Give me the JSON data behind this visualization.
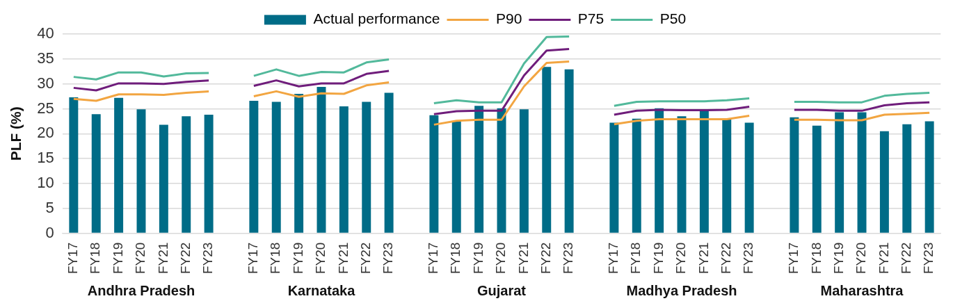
{
  "chart_data": {
    "type": "bar",
    "ylabel": "PLF (%)",
    "categories": [
      "FY17",
      "FY18",
      "FY19",
      "FY20",
      "FY21",
      "FY22",
      "FY23",
      null,
      "FY17",
      "FY18",
      "FY19",
      "FY20",
      "FY21",
      "FY22",
      "FY23",
      null,
      "FY17",
      "FY18",
      "FY19",
      "FY20",
      "FY21",
      "FY22",
      "FY23",
      null,
      "FY17",
      "FY18",
      "FY19",
      "FY20",
      "FY21",
      "FY22",
      "FY23",
      null,
      "FY17",
      "FY18",
      "FY19",
      "FY20",
      "FY21",
      "FY22",
      "FY23"
    ],
    "series": [
      {
        "name": "Actual performance",
        "color": "#006c87",
        "values": [
          27.3,
          23.9,
          27.2,
          24.9,
          21.8,
          23.5,
          23.8,
          null,
          26.6,
          26.4,
          28.0,
          29.4,
          25.5,
          26.4,
          28.2,
          null,
          23.7,
          22.5,
          25.6,
          25.1,
          24.9,
          33.4,
          32.9,
          null,
          22.2,
          23.0,
          25.1,
          23.5,
          24.6,
          23.1,
          22.2,
          null,
          23.3,
          21.6,
          24.3,
          24.3,
          20.5,
          21.9,
          22.5
        ]
      },
      {
        "name": "P90",
        "type": "line",
        "color": "#f2a541",
        "values": [
          27.0,
          26.6,
          27.9,
          27.9,
          27.8,
          28.2,
          28.5,
          null,
          27.5,
          28.5,
          27.4,
          28.1,
          28.0,
          29.7,
          30.3,
          null,
          21.8,
          22.6,
          22.8,
          22.8,
          29.5,
          34.2,
          34.5,
          null,
          21.9,
          22.6,
          22.9,
          22.9,
          22.9,
          22.9,
          23.6,
          null,
          22.8,
          22.8,
          22.7,
          22.7,
          23.8,
          24.0,
          24.2
        ]
      },
      {
        "name": "P75",
        "type": "line",
        "color": "#6f1d7b",
        "values": [
          29.2,
          28.7,
          30.1,
          30.1,
          30.0,
          30.4,
          30.7,
          null,
          29.6,
          30.7,
          29.5,
          30.1,
          30.1,
          32.0,
          32.6,
          null,
          23.9,
          24.5,
          24.6,
          24.6,
          31.7,
          36.7,
          37.0,
          null,
          23.8,
          24.6,
          24.8,
          24.7,
          24.7,
          24.8,
          25.4,
          null,
          24.8,
          24.8,
          24.6,
          24.6,
          25.7,
          26.1,
          26.3
        ]
      },
      {
        "name": "P50",
        "type": "line",
        "color": "#52b99b",
        "values": [
          31.4,
          30.9,
          32.3,
          32.3,
          31.5,
          32.1,
          32.2,
          null,
          31.6,
          32.9,
          31.6,
          32.4,
          32.3,
          34.3,
          34.9,
          null,
          26.1,
          26.7,
          26.3,
          26.3,
          34.1,
          39.4,
          39.5,
          null,
          25.6,
          26.4,
          26.5,
          26.5,
          26.5,
          26.7,
          27.1,
          null,
          26.4,
          26.4,
          26.3,
          26.3,
          27.6,
          28.0,
          28.2
        ]
      }
    ],
    "ylim": [
      0,
      40
    ],
    "yticks": [
      0,
      5,
      10,
      15,
      20,
      25,
      30,
      35,
      40
    ],
    "grid": "y",
    "legend": "top",
    "annotations": [
      "Andhra Pradesh",
      "Karnataka",
      "Gujarat",
      "Madhya Pradesh",
      "Maharashtra"
    ]
  }
}
